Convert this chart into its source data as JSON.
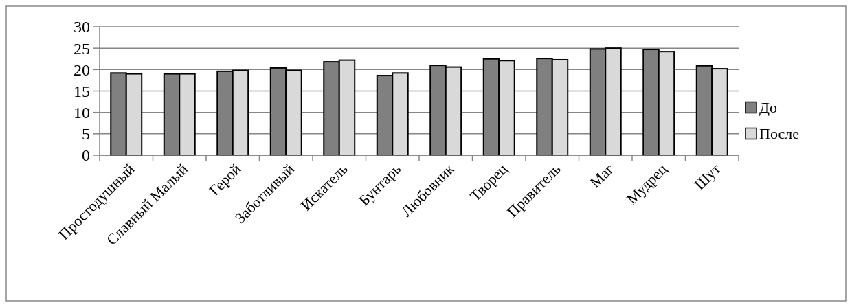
{
  "chart_data": {
    "type": "bar",
    "categories": [
      "Простодушный",
      "Славный Малый",
      "Герой",
      "Заботливый",
      "Искатель",
      "Бунтарь",
      "Любовник",
      "Творец",
      "Правитель",
      "Маг",
      "Мудрец",
      "Шут"
    ],
    "series": [
      {
        "name": "До",
        "color": "#808080",
        "values": [
          19.2,
          19.0,
          19.6,
          20.4,
          21.8,
          18.6,
          21.0,
          22.5,
          22.6,
          24.8,
          24.7,
          20.9
        ]
      },
      {
        "name": "После",
        "color": "#d9d9d9",
        "values": [
          19.0,
          19.0,
          19.8,
          19.8,
          22.2,
          19.2,
          20.6,
          22.1,
          22.3,
          25.0,
          24.2,
          20.2
        ]
      }
    ],
    "ylim": [
      0,
      30
    ],
    "yticks": [
      0,
      5,
      10,
      15,
      20,
      25,
      30
    ],
    "grid": "y",
    "legend": "right"
  }
}
